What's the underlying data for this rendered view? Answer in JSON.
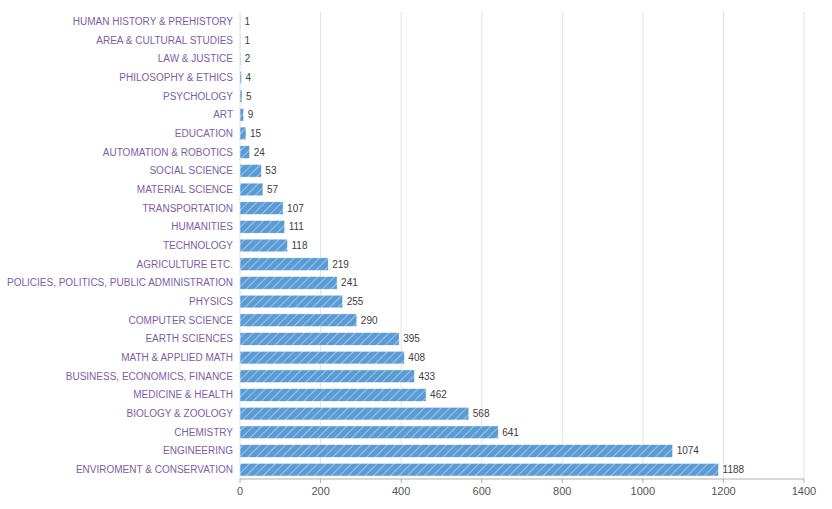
{
  "chart_data": {
    "type": "bar",
    "orientation": "horizontal",
    "categories": [
      "HUMAN HISTORY & PREHISTORY",
      "AREA & CULTURAL STUDIES",
      "LAW & JUSTICE",
      "PHILOSOPHY & ETHICS",
      "PSYCHOLOGY",
      "ART",
      "EDUCATION",
      "AUTOMATION & ROBOTICS",
      "SOCIAL SCIENCE",
      "MATERIAL SCIENCE",
      "TRANSPORTATION",
      "HUMANITIES",
      "TECHNOLOGY",
      "AGRICULTURE ETC.",
      "POLICIES, POLITICS, PUBLIC ADMINISTRATION",
      "PHYSICS",
      "COMPUTER SCIENCE",
      "EARTH SCIENCES",
      "MATH & APPLIED MATH",
      "BUSINESS, ECONOMICS, FINANCE",
      "MEDICINE & HEALTH",
      "BIOLOGY & ZOOLOGY",
      "CHEMISTRY",
      "ENGINEERING",
      "ENVIROMENT & CONSERVATION"
    ],
    "values": [
      1,
      1,
      2,
      4,
      5,
      9,
      15,
      24,
      53,
      57,
      107,
      111,
      118,
      219,
      241,
      255,
      290,
      395,
      408,
      433,
      462,
      568,
      641,
      1074,
      1188
    ],
    "color": "#5b9bd5",
    "xlim": [
      0,
      1400
    ],
    "xticks": [
      0,
      200,
      400,
      600,
      800,
      1000,
      1200,
      1400
    ],
    "grid": true,
    "data_labels": true
  }
}
